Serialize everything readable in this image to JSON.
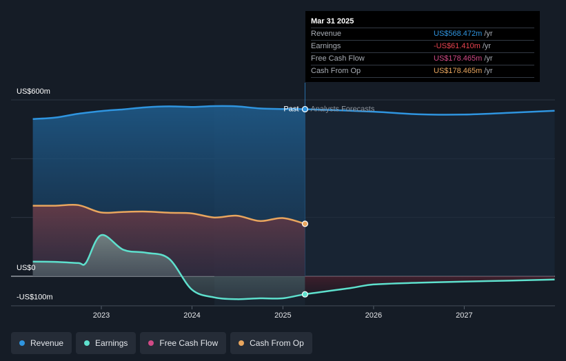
{
  "chart_data": {
    "type": "area",
    "x_axis": {
      "ticks": [
        "2023",
        "2024",
        "2025",
        "2026",
        "2027"
      ],
      "range": [
        "2022-02-01",
        "2027-12-31"
      ]
    },
    "y_axis": {
      "labels": [
        "US$600m",
        "US$0",
        "-US$100m"
      ],
      "range": [
        -100,
        600
      ],
      "unit": "US$m"
    },
    "grid": true,
    "divider_date": "2025-03-31",
    "past_label": "Past",
    "forecast_label": "Analysts Forecasts",
    "series": [
      {
        "name": "Revenue",
        "color": "#2f95e0",
        "points": [
          [
            "2022-03-31",
            535
          ],
          [
            "2022-06-30",
            540
          ],
          [
            "2022-09-30",
            553
          ],
          [
            "2022-12-31",
            562
          ],
          [
            "2023-03-31",
            568
          ],
          [
            "2023-06-30",
            575
          ],
          [
            "2023-09-30",
            578
          ],
          [
            "2023-12-31",
            576
          ],
          [
            "2024-03-31",
            579
          ],
          [
            "2024-06-30",
            578
          ],
          [
            "2024-09-30",
            571
          ],
          [
            "2024-12-31",
            569
          ],
          [
            "2025-03-31",
            568.472
          ],
          [
            "2025-12-31",
            560
          ],
          [
            "2026-06-30",
            551
          ],
          [
            "2026-12-31",
            550
          ],
          [
            "2027-06-30",
            556
          ],
          [
            "2027-12-31",
            563
          ]
        ]
      },
      {
        "name": "Earnings",
        "color": "#5ee0cd",
        "points": [
          [
            "2022-03-31",
            50
          ],
          [
            "2022-06-30",
            49
          ],
          [
            "2022-09-30",
            45
          ],
          [
            "2022-10-31",
            46
          ],
          [
            "2022-12-31",
            140
          ],
          [
            "2023-03-31",
            90
          ],
          [
            "2023-06-30",
            80
          ],
          [
            "2023-09-30",
            60
          ],
          [
            "2023-12-31",
            -45
          ],
          [
            "2024-03-31",
            -72
          ],
          [
            "2024-06-30",
            -78
          ],
          [
            "2024-09-30",
            -75
          ],
          [
            "2024-12-31",
            -75
          ],
          [
            "2025-03-31",
            -61.41
          ],
          [
            "2025-09-30",
            -40
          ],
          [
            "2025-12-31",
            -28
          ],
          [
            "2026-06-30",
            -22
          ],
          [
            "2026-12-31",
            -18
          ],
          [
            "2027-06-30",
            -15
          ],
          [
            "2027-12-31",
            -11
          ]
        ]
      },
      {
        "name": "Free Cash Flow",
        "color": "#d14a86",
        "points": []
      },
      {
        "name": "Cash From Op",
        "color": "#e9a65e",
        "points": [
          [
            "2022-03-31",
            240
          ],
          [
            "2022-06-30",
            240
          ],
          [
            "2022-09-30",
            242
          ],
          [
            "2022-12-31",
            217
          ],
          [
            "2023-03-31",
            219
          ],
          [
            "2023-06-30",
            220
          ],
          [
            "2023-09-30",
            216
          ],
          [
            "2023-12-31",
            214
          ],
          [
            "2024-03-31",
            200
          ],
          [
            "2024-06-30",
            206
          ],
          [
            "2024-09-30",
            188
          ],
          [
            "2024-12-31",
            198
          ],
          [
            "2025-03-31",
            178.465
          ]
        ]
      }
    ],
    "tooltip": {
      "date": "Mar 31 2025",
      "rows": [
        {
          "label": "Revenue",
          "value": "US$568.472m",
          "unit": "/yr",
          "color": "#2f95e0"
        },
        {
          "label": "Earnings",
          "value": "-US$61.410m",
          "unit": "/yr",
          "color": "#e8434f"
        },
        {
          "label": "Free Cash Flow",
          "value": "US$178.465m",
          "unit": "/yr",
          "color": "#d14a86"
        },
        {
          "label": "Cash From Op",
          "value": "US$178.465m",
          "unit": "/yr",
          "color": "#e9a65e"
        }
      ]
    }
  },
  "legend": [
    {
      "label": "Revenue",
      "color": "#2f95e0"
    },
    {
      "label": "Earnings",
      "color": "#5ee0cd"
    },
    {
      "label": "Free Cash Flow",
      "color": "#d14a86"
    },
    {
      "label": "Cash From Op",
      "color": "#e9a65e"
    }
  ]
}
